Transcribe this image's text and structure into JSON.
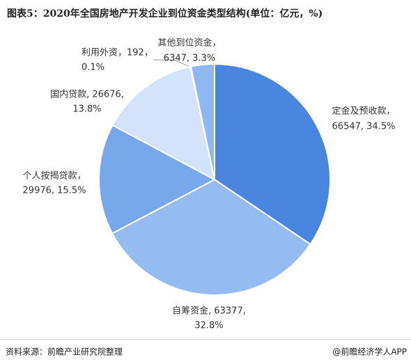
{
  "chart_data": {
    "type": "pie",
    "title": "图表5：2020年全国房地产开发企业到位资金类型结构(单位：亿元，%)",
    "values": [
      66547,
      63377,
      29976,
      26676,
      192,
      6347
    ],
    "value_labels": [
      [
        "定金及预收款，",
        "66547, 34.5%"
      ],
      [
        "自筹资金, 63377,",
        "32.8%"
      ],
      [
        "个人按揭贷款，",
        "29976, 15.5%"
      ],
      [
        "国内贷款, 26676,",
        "13.8%"
      ],
      [
        "利用外资，192，",
        "0.1%"
      ],
      [
        "其他到位资金，",
        "6347, 3.3%"
      ]
    ],
    "colors": [
      "#4a86e0",
      "#95bcf1",
      "#78a8ec",
      "#d2e3fb",
      "#eef4fd",
      "#8fb8f0"
    ]
  },
  "footer": {
    "source": "资料来源：前瞻产业研究院整理",
    "brand": "@前瞻经济学人APP"
  }
}
